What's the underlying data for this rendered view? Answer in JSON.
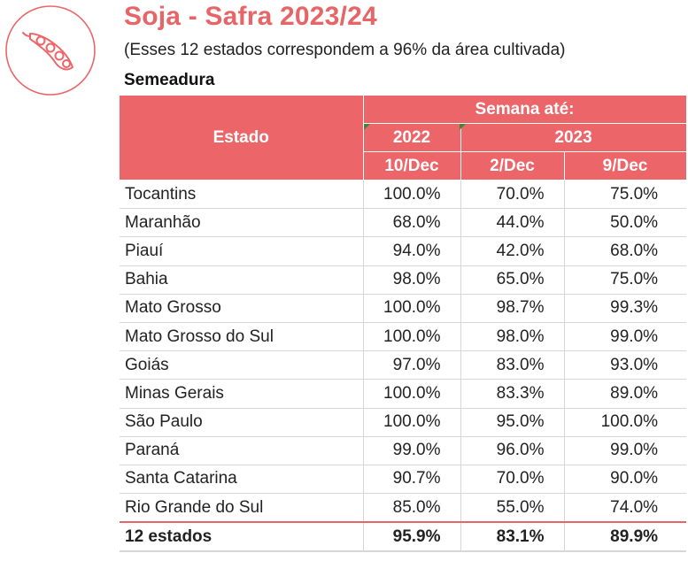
{
  "header": {
    "title": "Soja - Safra 2023/24",
    "subtitle": "(Esses 12 estados correspondem a 96% da área cultivada)",
    "section": "Semeadura",
    "logo_icon": "soybean-pod-icon",
    "accent_color": "#ec6669"
  },
  "table": {
    "estado_header": "Estado",
    "semana_header": "Semana até:",
    "year_2022": "2022",
    "year_2023": "2023",
    "columns": [
      "10/Dec",
      "2/Dec",
      "9/Dec"
    ],
    "rows": [
      {
        "estado": "Tocantins",
        "v1": "100.0%",
        "v2": "70.0%",
        "v3": "75.0%"
      },
      {
        "estado": "Maranhão",
        "v1": "68.0%",
        "v2": "44.0%",
        "v3": "50.0%"
      },
      {
        "estado": "Piauí",
        "v1": "94.0%",
        "v2": "42.0%",
        "v3": "68.0%"
      },
      {
        "estado": "Bahia",
        "v1": "98.0%",
        "v2": "65.0%",
        "v3": "75.0%"
      },
      {
        "estado": "Mato Grosso",
        "v1": "100.0%",
        "v2": "98.7%",
        "v3": "99.3%"
      },
      {
        "estado": "Mato Grosso do Sul",
        "v1": "100.0%",
        "v2": "98.0%",
        "v3": "99.0%"
      },
      {
        "estado": "Goiás",
        "v1": "97.0%",
        "v2": "83.0%",
        "v3": "93.0%"
      },
      {
        "estado": "Minas Gerais",
        "v1": "100.0%",
        "v2": "83.3%",
        "v3": "89.0%"
      },
      {
        "estado": "São Paulo",
        "v1": "100.0%",
        "v2": "95.0%",
        "v3": "100.0%"
      },
      {
        "estado": "Paraná",
        "v1": "99.0%",
        "v2": "96.0%",
        "v3": "99.0%"
      },
      {
        "estado": "Santa Catarina",
        "v1": "90.7%",
        "v2": "70.0%",
        "v3": "90.0%"
      },
      {
        "estado": "Rio Grande do Sul",
        "v1": "85.0%",
        "v2": "55.0%",
        "v3": "74.0%"
      }
    ],
    "total": {
      "estado": "12 estados",
      "v1": "95.9%",
      "v2": "83.1%",
      "v3": "89.9%"
    }
  }
}
